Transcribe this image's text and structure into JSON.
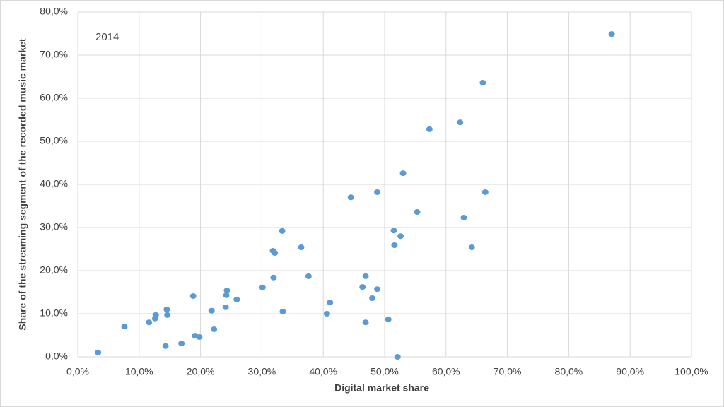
{
  "chart_data": {
    "type": "scatter",
    "annotation": "2014",
    "x_label": "Digital market share",
    "y_label": "Share of the streaming segment of the recorded music market",
    "color": "#5b9bd5",
    "grid": true,
    "xlim": [
      0,
      100
    ],
    "ylim": [
      0,
      80
    ],
    "xticks": [
      {
        "value": 0,
        "label": "0,0%"
      },
      {
        "value": 10,
        "label": "10,0%"
      },
      {
        "value": 20,
        "label": "20,0%"
      },
      {
        "value": 30,
        "label": "30,0%"
      },
      {
        "value": 40,
        "label": "40,0%"
      },
      {
        "value": 50,
        "label": "50,0%"
      },
      {
        "value": 60,
        "label": "60,0%"
      },
      {
        "value": 70,
        "label": "70,0%"
      },
      {
        "value": 80,
        "label": "80,0%"
      },
      {
        "value": 90,
        "label": "90,0%"
      },
      {
        "value": 100,
        "label": "100,0%"
      }
    ],
    "yticks": [
      {
        "value": 0,
        "label": "0,0%"
      },
      {
        "value": 10,
        "label": "10,0%"
      },
      {
        "value": 20,
        "label": "20,0%"
      },
      {
        "value": 30,
        "label": "30,0%"
      },
      {
        "value": 40,
        "label": "40,0%"
      },
      {
        "value": 50,
        "label": "50,0%"
      },
      {
        "value": 60,
        "label": "60,0%"
      },
      {
        "value": 70,
        "label": "70,0%"
      },
      {
        "value": 80,
        "label": "80,0%"
      }
    ],
    "x": [
      3.3,
      7.6,
      11.6,
      12.6,
      12.7,
      14.5,
      14.6,
      14.3,
      16.9,
      18.8,
      19.1,
      19.8,
      21.8,
      22.2,
      24.1,
      24.2,
      24.3,
      25.9,
      30.1,
      31.8,
      32.1,
      31.9,
      33.3,
      33.4,
      36.4,
      37.6,
      40.6,
      41.1,
      44.5,
      46.4,
      46.9,
      46.9,
      48.0,
      48.8,
      48.8,
      50.6,
      51.5,
      51.6,
      52.1,
      52.6,
      53.0,
      55.3,
      57.3,
      62.3,
      62.9,
      64.2,
      66.0,
      66.4,
      87.0
    ],
    "values": [
      1.0,
      7.0,
      8.0,
      8.9,
      9.7,
      11.0,
      9.7,
      2.5,
      3.1,
      14.1,
      4.9,
      4.6,
      10.7,
      6.4,
      11.5,
      14.3,
      15.4,
      13.3,
      16.1,
      24.6,
      24.1,
      18.4,
      29.2,
      10.5,
      25.4,
      18.7,
      10.0,
      12.6,
      37.0,
      16.2,
      18.7,
      8.0,
      13.6,
      15.7,
      38.2,
      8.7,
      29.3,
      25.9,
      0.0,
      28.0,
      42.6,
      33.6,
      52.8,
      54.4,
      32.3,
      25.4,
      63.6,
      38.2,
      74.9
    ]
  }
}
